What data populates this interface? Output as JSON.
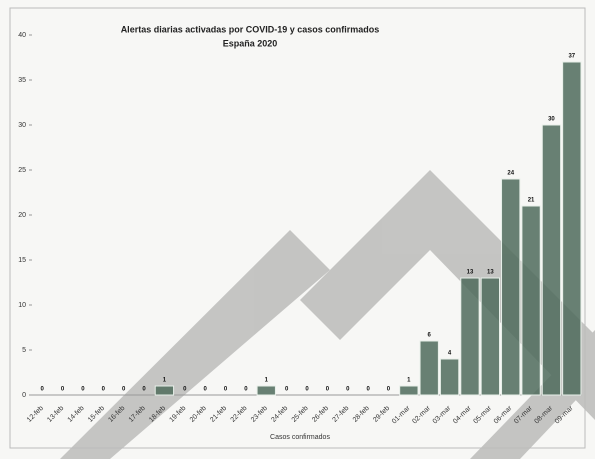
{
  "chart_data": {
    "type": "bar",
    "title": "Alertas diarias activadas por COVID-19 y casos confirmados",
    "subtitle": "España 2020",
    "x_label": "Casos confirmados",
    "categories": [
      "12-feb",
      "13-feb",
      "14-feb",
      "15-feb",
      "16-feb",
      "17-feb",
      "18-feb",
      "19-feb",
      "20-feb",
      "21-feb",
      "22-feb",
      "23-feb",
      "24-feb",
      "25-feb",
      "26-feb",
      "27-feb",
      "28-feb",
      "29-feb",
      "01-mar",
      "02-mar",
      "03-mar",
      "04-mar",
      "05-mar",
      "06-mar",
      "07-mar",
      "08-mar",
      "09-mar"
    ],
    "values": [
      0,
      0,
      0,
      0,
      0,
      0,
      1,
      0,
      0,
      0,
      0,
      1,
      0,
      0,
      0,
      0,
      0,
      0,
      1,
      6,
      4,
      13,
      13,
      24,
      21,
      30,
      37
    ],
    "color": "#4f6b5c",
    "ylim": [
      0,
      40
    ],
    "yticks": [
      0,
      5,
      10,
      15,
      20,
      25,
      30,
      35,
      40
    ],
    "grid": false
  }
}
